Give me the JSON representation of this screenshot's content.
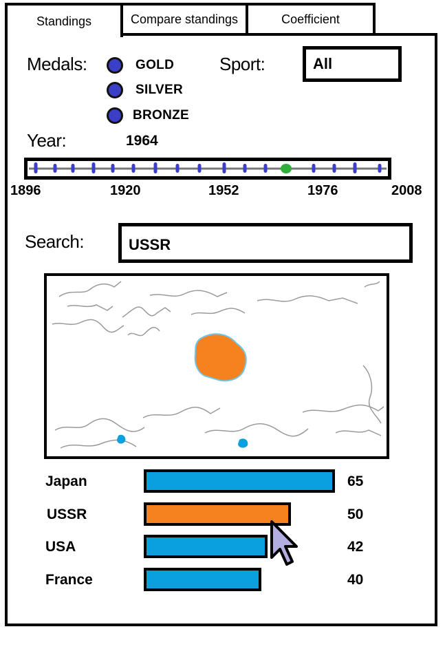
{
  "tabs": [
    {
      "label": "Standings",
      "active": true
    },
    {
      "label": "Compare standings",
      "active": false
    },
    {
      "label": "Coefficient",
      "active": false
    }
  ],
  "filters": {
    "medals_label": "Medals:",
    "medals": [
      "GOLD",
      "SILVER",
      "BRONZE"
    ],
    "sport_label": "Sport:",
    "sport_value": "All",
    "year_label": "Year:",
    "year_value": "1964"
  },
  "timeline": {
    "ticks": [
      "1896",
      "1920",
      "1952",
      "1976",
      "2008"
    ],
    "selected_year": 1964,
    "selected_color": "#2fae3a",
    "marker_color": "#3b3fc8"
  },
  "search": {
    "label": "Search:",
    "value": "USSR"
  },
  "map": {
    "highlight_color": "#f5821f",
    "other_color": "#0aa0e0"
  },
  "chart_data": {
    "type": "bar",
    "categories": [
      "Japan",
      "USSR",
      "USA",
      "France"
    ],
    "values": [
      65,
      50,
      42,
      40
    ],
    "highlighted": "USSR",
    "bar_color": "#0aa0e0",
    "highlight_color": "#f5821f"
  }
}
